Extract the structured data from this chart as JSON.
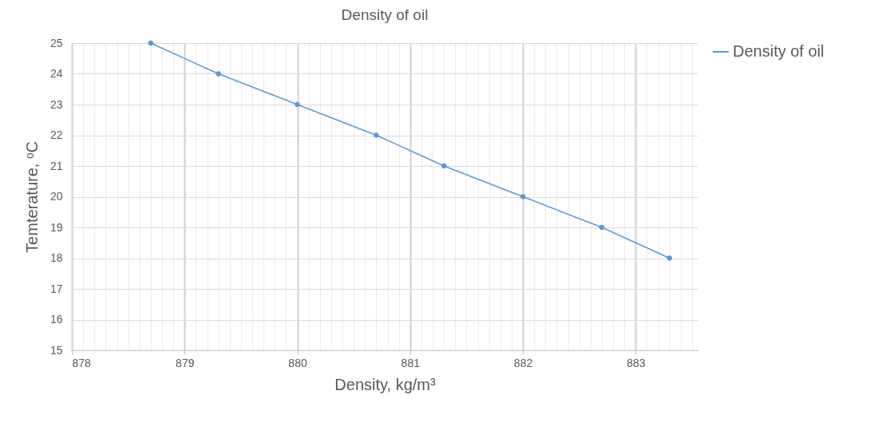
{
  "chart_data": {
    "type": "line",
    "title": "Density of oil",
    "xlabel": "Density, kg/m³",
    "ylabel": "Temterature, ᵒC",
    "x": [
      878.7,
      879.3,
      880,
      880.7,
      881.3,
      882,
      882.7,
      883.3
    ],
    "series": [
      {
        "name": "Density of oil",
        "color": "#5b9bd5",
        "values": [
          25,
          24,
          23,
          22,
          21,
          20,
          19,
          18
        ]
      }
    ],
    "xlim": [
      878,
      883.55
    ],
    "xticks": [
      878,
      {
        "value": 878.1,
        "label": null
      },
      {
        "value": 878.2,
        "label": null
      },
      {
        "value": 878.3,
        "label": null
      },
      {
        "value": 878.4,
        "label": null
      },
      {
        "value": 878.5,
        "label": null
      },
      {
        "value": 878.6,
        "label": null
      },
      {
        "value": 878.7,
        "label": null
      },
      {
        "value": 878.8,
        "label": null
      },
      {
        "value": 878.9,
        "label": null
      },
      879,
      {
        "value": 879.1,
        "label": null
      },
      {
        "value": 879.2,
        "label": null
      },
      {
        "value": 879.3,
        "label": null
      },
      {
        "value": 879.4,
        "label": null
      },
      {
        "value": 879.5,
        "label": null
      },
      {
        "value": 879.6,
        "label": null
      },
      {
        "value": 879.7,
        "label": null
      },
      {
        "value": 879.8,
        "label": null
      },
      {
        "value": 879.9,
        "label": null
      },
      880,
      {
        "value": 880.1,
        "label": null
      },
      {
        "value": 880.2,
        "label": null
      },
      {
        "value": 880.3,
        "label": null
      },
      {
        "value": 880.4,
        "label": null
      },
      {
        "value": 880.5,
        "label": null
      },
      {
        "value": 880.6,
        "label": null
      },
      {
        "value": 880.7,
        "label": null
      },
      {
        "value": 880.8,
        "label": null
      },
      {
        "value": 880.9,
        "label": null
      },
      881,
      {
        "value": 881.1,
        "label": null
      },
      {
        "value": 881.2,
        "label": null
      },
      {
        "value": 881.3,
        "label": null
      },
      {
        "value": 881.4,
        "label": null
      },
      {
        "value": 881.5,
        "label": null
      },
      {
        "value": 881.6,
        "label": null
      },
      {
        "value": 881.7,
        "label": null
      },
      {
        "value": 881.8,
        "label": null
      },
      {
        "value": 881.9,
        "label": null
      },
      882,
      {
        "value": 882.1,
        "label": null
      },
      {
        "value": 882.2,
        "label": null
      },
      {
        "value": 882.3,
        "label": null
      },
      {
        "value": 882.4,
        "label": null
      },
      {
        "value": 882.5,
        "label": null
      },
      {
        "value": 882.6,
        "label": null
      },
      {
        "value": 882.7,
        "label": null
      },
      {
        "value": 882.8,
        "label": null
      },
      {
        "value": 882.9,
        "label": null
      },
      883,
      {
        "value": 883.1,
        "label": null
      },
      {
        "value": 883.2,
        "label": null
      },
      {
        "value": 883.3,
        "label": null
      },
      {
        "value": 883.4,
        "label": null
      },
      {
        "value": 883.5,
        "label": null
      }
    ],
    "ylim": [
      15,
      25
    ],
    "yticks": [
      15,
      16,
      17,
      18,
      19,
      20,
      21,
      22,
      23,
      24,
      25
    ],
    "grid": true,
    "legend": "right",
    "marker": "circle",
    "line_style": "solid"
  }
}
